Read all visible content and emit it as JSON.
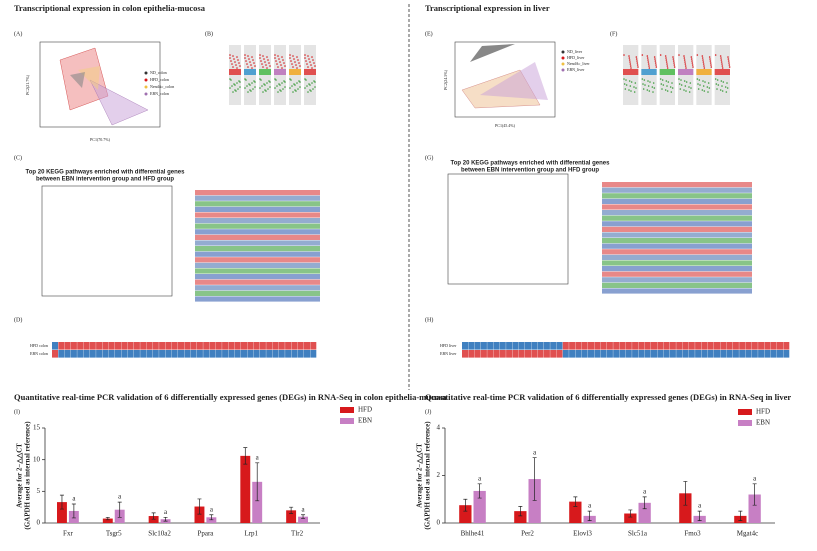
{
  "headers": {
    "left": "Transcriptional expression in colon epithelia-mucosa",
    "right": "Transcriptional expression in liver"
  },
  "panels": {
    "A": "(A)",
    "B": "(B)",
    "C": "(C)",
    "D": "(D)",
    "E": "(E)",
    "F": "(F)",
    "G": "(G)",
    "H": "(H)"
  },
  "pca_left": {
    "legend": [
      "ND_colon",
      "HFD_colon",
      "NendAc_colon",
      "EBN_colon"
    ],
    "xlabel": "PC1(70.7%)",
    "ylabel": "PC2(21.7%)"
  },
  "pca_right": {
    "legend": [
      "ND_liver",
      "HFD_liver",
      "NendAc_liver",
      "EBN_liver"
    ],
    "xlabel": "PC1(45.4%)",
    "ylabel": "PC2(24.5%)"
  },
  "kegg_title": [
    "Top 20 KEGG pathways enriched with differential genes",
    "between EBN intervention group and HFD group"
  ],
  "heat_left": [
    "HFD colon",
    "EBN colon"
  ],
  "heat_right": [
    "HFD liver",
    "EBN liver"
  ],
  "chart_data": [
    {
      "type": "bar",
      "panel": "(I)",
      "title": "Quantitative real-time PCR validation of 6 differentially expressed genes (DEGs) in RNA-Seq in colon epithelia-mucosa",
      "ylabel": [
        "Average for 2−△△CT",
        "(GAPDH used as internal reference)"
      ],
      "categories": [
        "Fxr",
        "Tsgr5",
        "Slc10a2",
        "Ppara",
        "Lrp1",
        "Tlr2"
      ],
      "ylim": [
        0,
        15
      ],
      "yticks": [
        0,
        5,
        10,
        15
      ],
      "legend": "upper right",
      "series": [
        {
          "name": "HFD",
          "color": "#d7191c",
          "values": [
            3.3,
            0.7,
            1.1,
            2.6,
            10.6,
            2.0
          ],
          "errors": [
            1.1,
            0.2,
            0.5,
            1.2,
            1.3,
            0.5
          ]
        },
        {
          "name": "EBN",
          "color": "#c77fc4",
          "values": [
            1.9,
            2.1,
            0.6,
            0.9,
            6.5,
            1.0
          ],
          "errors": [
            1.1,
            1.2,
            0.3,
            0.4,
            3.0,
            0.3
          ],
          "annotations": [
            "a",
            "a",
            "a",
            "a",
            "a",
            "a"
          ]
        }
      ]
    },
    {
      "type": "bar",
      "panel": "(J)",
      "title": "Quantitative real-time PCR validation of 6 differentially expressed genes (DEGs) in RNA-Seq in liver",
      "ylabel": [
        "Average for 2−△△CT",
        "(GAPDH used as internal reference)"
      ],
      "categories": [
        "Bhlhe41",
        "Per2",
        "Elovl3",
        "Slc51a",
        "Fmo3",
        "Mgat4c"
      ],
      "ylim": [
        0,
        4
      ],
      "yticks": [
        0,
        2,
        4
      ],
      "legend": "upper right",
      "series": [
        {
          "name": "HFD",
          "color": "#d7191c",
          "values": [
            0.75,
            0.5,
            0.9,
            0.4,
            1.25,
            0.3
          ],
          "errors": [
            0.25,
            0.2,
            0.2,
            0.15,
            0.5,
            0.2
          ]
        },
        {
          "name": "EBN",
          "color": "#c77fc4",
          "values": [
            1.35,
            1.85,
            0.3,
            0.85,
            0.3,
            1.2
          ],
          "errors": [
            0.3,
            0.9,
            0.2,
            0.25,
            0.2,
            0.45
          ],
          "annotations": [
            "a",
            "a",
            "a",
            "a",
            "a",
            "a"
          ]
        }
      ]
    }
  ]
}
